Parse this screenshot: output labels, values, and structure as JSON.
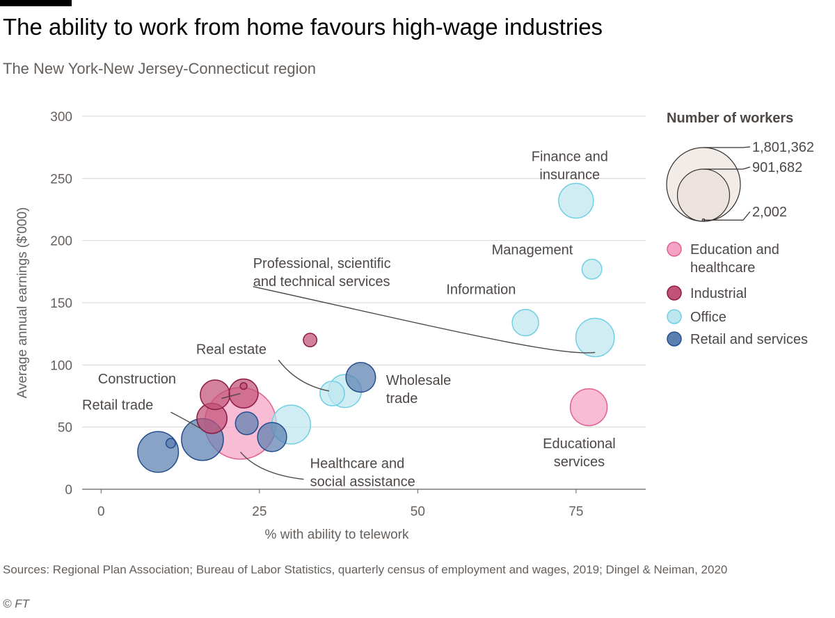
{
  "header": {
    "title": "The ability to work from home favours high-wage industries",
    "subtitle": "The New York-New Jersey-Connecticut region"
  },
  "footer": {
    "sources": "Sources: Regional Plan Association; Bureau of Labor Statistics, quarterly census of employment and wages, 2019; Dingel & Neiman, 2020",
    "credit": "© FT"
  },
  "chart_data": {
    "type": "scatter",
    "xlabel": "% with ability to telework",
    "ylabel": "Average annual earnings ($'000)",
    "xlim": [
      -3,
      86
    ],
    "ylim": [
      0,
      300
    ],
    "xticks": [
      0,
      25,
      50,
      75
    ],
    "yticks": [
      0,
      50,
      100,
      150,
      200,
      250,
      300
    ],
    "grid": "horizontal",
    "size_legend": {
      "title": "Number of workers",
      "values": [
        1801362,
        901682,
        2002
      ],
      "labels": [
        "1,801,362",
        "901,682",
        "2,002"
      ]
    },
    "categories": [
      {
        "key": "education",
        "label": "Education and healthcare",
        "fill": "#f5a3c4",
        "stroke": "#e0608f"
      },
      {
        "key": "industrial",
        "label": "Industrial",
        "fill": "#c25277",
        "stroke": "#8c1a42"
      },
      {
        "key": "office",
        "label": "Office",
        "fill": "#bde6ef",
        "stroke": "#6fcfe3"
      },
      {
        "key": "retail",
        "label": "Retail and services",
        "fill": "#5b80b0",
        "stroke": "#234e8c"
      }
    ],
    "points": [
      {
        "x": 22,
        "y": 53,
        "workers": 1700000,
        "cat": "education"
      },
      {
        "x": 77,
        "y": 66,
        "workers": 450000,
        "cat": "education"
      },
      {
        "x": 30,
        "y": 52,
        "workers": 500000,
        "cat": "office"
      },
      {
        "x": 36.5,
        "y": 77,
        "workers": 200000,
        "cat": "office"
      },
      {
        "x": 38.5,
        "y": 79,
        "workers": 360000,
        "cat": "office"
      },
      {
        "x": 67,
        "y": 134,
        "workers": 230000,
        "cat": "office"
      },
      {
        "x": 75,
        "y": 232,
        "workers": 400000,
        "cat": "office"
      },
      {
        "x": 77.5,
        "y": 177,
        "workers": 130000,
        "cat": "office"
      },
      {
        "x": 78,
        "y": 122,
        "workers": 490000,
        "cat": "office"
      },
      {
        "x": 33,
        "y": 120,
        "workers": 60000,
        "cat": "industrial"
      },
      {
        "x": 18,
        "y": 76,
        "workers": 290000,
        "cat": "industrial"
      },
      {
        "x": 22.5,
        "y": 77,
        "workers": 280000,
        "cat": "industrial"
      },
      {
        "x": 17.5,
        "y": 57,
        "workers": 300000,
        "cat": "industrial"
      },
      {
        "x": 22.5,
        "y": 83,
        "workers": 15000,
        "cat": "industrial"
      },
      {
        "x": 11,
        "y": 37,
        "workers": 30000,
        "cat": "retail"
      },
      {
        "x": 9,
        "y": 30,
        "workers": 550000,
        "cat": "retail"
      },
      {
        "x": 16,
        "y": 40,
        "workers": 580000,
        "cat": "retail"
      },
      {
        "x": 23,
        "y": 53,
        "workers": 170000,
        "cat": "retail"
      },
      {
        "x": 27,
        "y": 42,
        "workers": 280000,
        "cat": "retail"
      },
      {
        "x": 41,
        "y": 90,
        "workers": 290000,
        "cat": "retail"
      }
    ],
    "annotations": [
      {
        "lines": [
          "Finance and",
          "insurance"
        ],
        "x": 74,
        "y": 264,
        "anchor": "middle"
      },
      {
        "lines": [
          "Management"
        ],
        "x": 74.5,
        "y": 189,
        "anchor": "end"
      },
      {
        "lines": [
          "Professional, scientific",
          "and technical services"
        ],
        "x": 24,
        "y": 178,
        "anchor": "start"
      },
      {
        "lines": [
          "Information"
        ],
        "x": 54.5,
        "y": 157,
        "anchor": "start"
      },
      {
        "lines": [
          "Real estate"
        ],
        "x": 15,
        "y": 109,
        "anchor": "start"
      },
      {
        "lines": [
          "Construction"
        ],
        "x": -0.5,
        "y": 85,
        "anchor": "start"
      },
      {
        "lines": [
          "Retail trade"
        ],
        "x": -3,
        "y": 64,
        "anchor": "start"
      },
      {
        "lines": [
          "Wholesale",
          "trade"
        ],
        "x": 45,
        "y": 84,
        "anchor": "start"
      },
      {
        "lines": [
          "Educational",
          "services"
        ],
        "x": 75.5,
        "y": 33,
        "anchor": "middle"
      },
      {
        "lines": [
          "Healthcare and",
          "social assistance"
        ],
        "x": 33,
        "y": 17,
        "anchor": "start"
      }
    ]
  }
}
